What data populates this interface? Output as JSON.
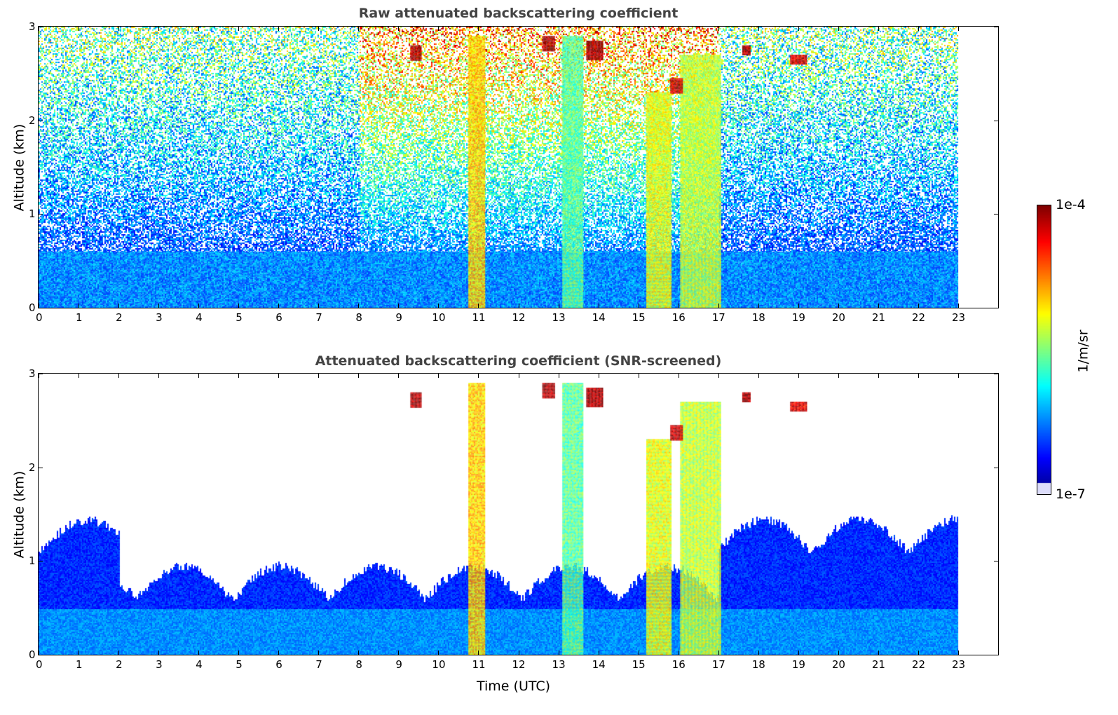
{
  "chart_data": [
    {
      "type": "heatmap",
      "title": "Raw attenuated backscattering coefficient",
      "xlabel": "",
      "ylabel": "Altitude (km)",
      "xlim": [
        0,
        24
      ],
      "ylim": [
        0,
        3
      ],
      "xticks": [
        0,
        1,
        2,
        3,
        4,
        5,
        6,
        7,
        8,
        9,
        10,
        11,
        12,
        13,
        14,
        15,
        16,
        17,
        18,
        19,
        20,
        21,
        22,
        23
      ],
      "yticks": [
        0,
        1,
        2,
        3
      ],
      "data_end_time": 23,
      "screened": false
    },
    {
      "type": "heatmap",
      "title": "Attenuated backscattering coefficient (SNR-screened)",
      "xlabel": "Time (UTC)",
      "ylabel": "Altitude (km)",
      "xlim": [
        0,
        24
      ],
      "ylim": [
        0,
        3
      ],
      "xticks": [
        0,
        1,
        2,
        3,
        4,
        5,
        6,
        7,
        8,
        9,
        10,
        11,
        12,
        13,
        14,
        15,
        16,
        17,
        18,
        19,
        20,
        21,
        22,
        23
      ],
      "yticks": [
        0,
        1,
        2,
        3
      ],
      "data_end_time": 23,
      "screened": true
    }
  ],
  "features": [
    {
      "name": "boundary-layer-aerosol",
      "t": [
        0,
        23
      ],
      "alt": [
        0,
        0.6
      ],
      "log10": -6.2
    },
    {
      "name": "cloud-column-1",
      "t": [
        10.75,
        11.15
      ],
      "alt": [
        0,
        2.9
      ],
      "log10": -5.0
    },
    {
      "name": "cloud-column-2",
      "t": [
        13.1,
        13.6
      ],
      "alt": [
        0,
        2.9
      ],
      "log10": -5.6
    },
    {
      "name": "cloud-column-3",
      "t": [
        15.2,
        15.8
      ],
      "alt": [
        0,
        2.3
      ],
      "log10": -5.2
    },
    {
      "name": "cloud-column-4",
      "t": [
        16.05,
        17.05
      ],
      "alt": [
        0,
        2.7
      ],
      "log10": -5.3
    },
    {
      "name": "cirrus-1",
      "t": [
        9.3,
        9.55
      ],
      "alt": [
        2.65,
        2.8
      ],
      "log10": -4.1
    },
    {
      "name": "cirrus-2",
      "t": [
        12.6,
        12.9
      ],
      "alt": [
        2.75,
        2.9
      ],
      "log10": -4.1
    },
    {
      "name": "cirrus-3",
      "t": [
        13.7,
        14.1
      ],
      "alt": [
        2.65,
        2.85
      ],
      "log10": -4.1
    },
    {
      "name": "cirrus-4",
      "t": [
        15.8,
        16.1
      ],
      "alt": [
        2.3,
        2.45
      ],
      "log10": -4.2
    },
    {
      "name": "cirrus-5",
      "t": [
        17.6,
        17.8
      ],
      "alt": [
        2.7,
        2.8
      ],
      "log10": -4.1
    },
    {
      "name": "cirrus-6",
      "t": [
        18.8,
        19.2
      ],
      "alt": [
        2.6,
        2.7
      ],
      "log10": -4.3
    }
  ],
  "colorbar": {
    "label": "1/m/sr",
    "max_label": "1e-4",
    "min_label": "1e-7",
    "range_log10": [
      -7,
      -4
    ]
  }
}
